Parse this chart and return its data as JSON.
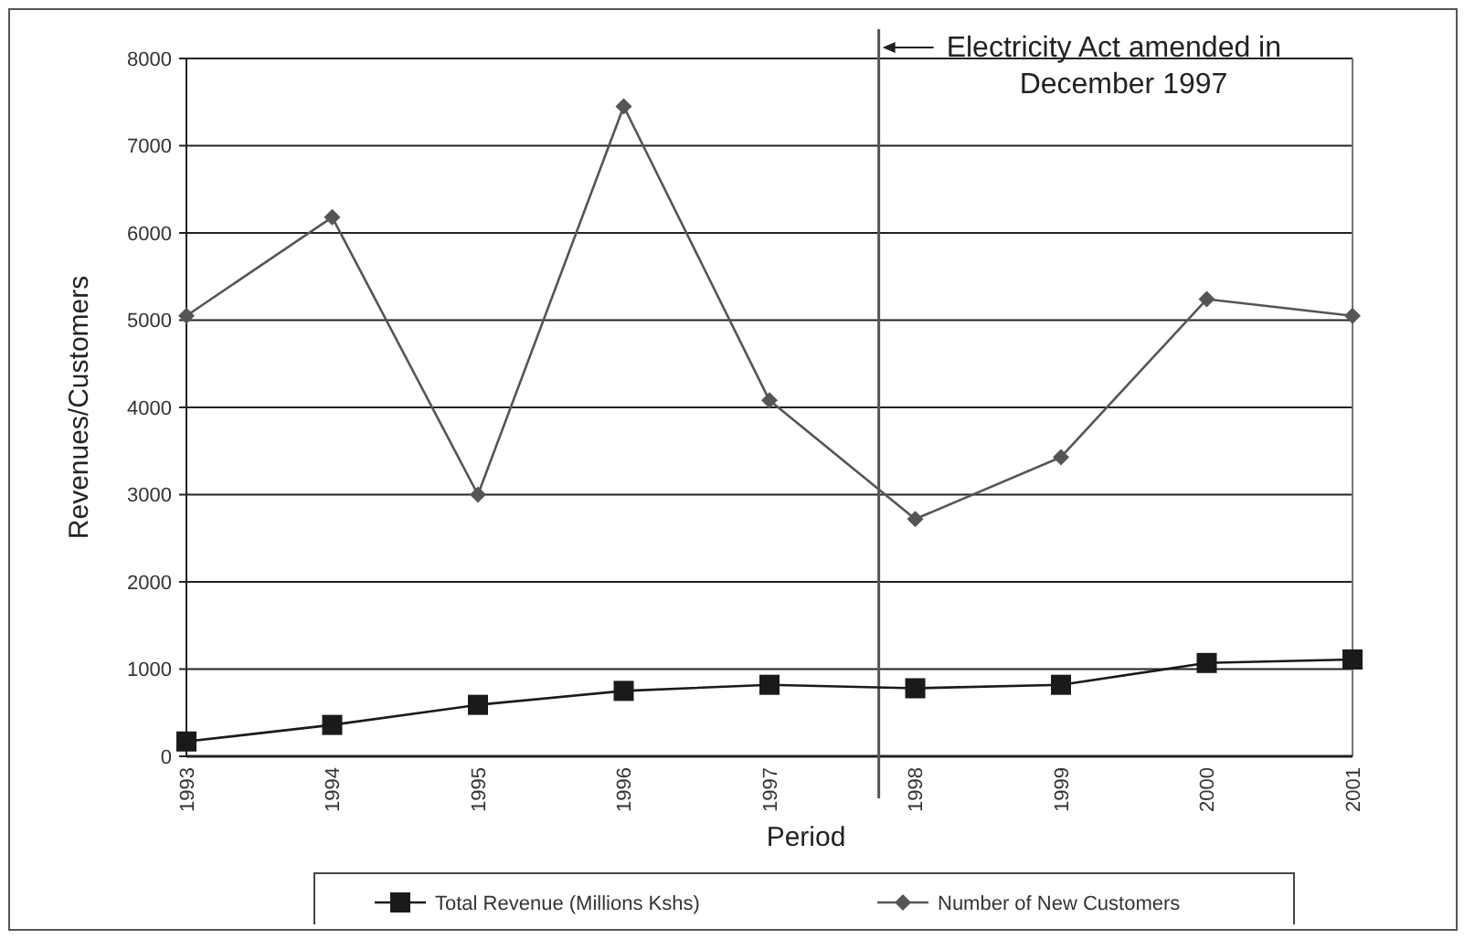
{
  "chart_data": {
    "type": "line",
    "xlabel": "Period",
    "ylabel": "Revenues/Customers",
    "x": [
      1993,
      1994,
      1995,
      1996,
      1997,
      1998,
      1999,
      2000,
      2001
    ],
    "xlim": [
      1993,
      2001
    ],
    "xticks": [
      1993,
      1994,
      1995,
      1996,
      1997,
      1998,
      1999,
      2000,
      2001
    ],
    "ylim": [
      0,
      8000
    ],
    "yticks": [
      0,
      1000,
      2000,
      3000,
      4000,
      5000,
      6000,
      7000,
      8000
    ],
    "series": [
      {
        "name": "Total Revenue (Millions Kshs)",
        "color": "#1a1a1a",
        "marker": "square",
        "values": [
          170,
          360,
          590,
          750,
          820,
          780,
          820,
          1070,
          1110
        ]
      },
      {
        "name": "Number of New Customers",
        "color": "#555555",
        "marker": "diamond",
        "values": [
          5050,
          6180,
          3000,
          7450,
          4080,
          2720,
          3430,
          5240,
          5050
        ]
      }
    ],
    "ref_lines": [
      {
        "axis": "x",
        "value": 1997.75,
        "label": "Electricity Act amended in December 1997",
        "color": "#555555"
      }
    ],
    "grid": "y",
    "legend": "bottom"
  }
}
